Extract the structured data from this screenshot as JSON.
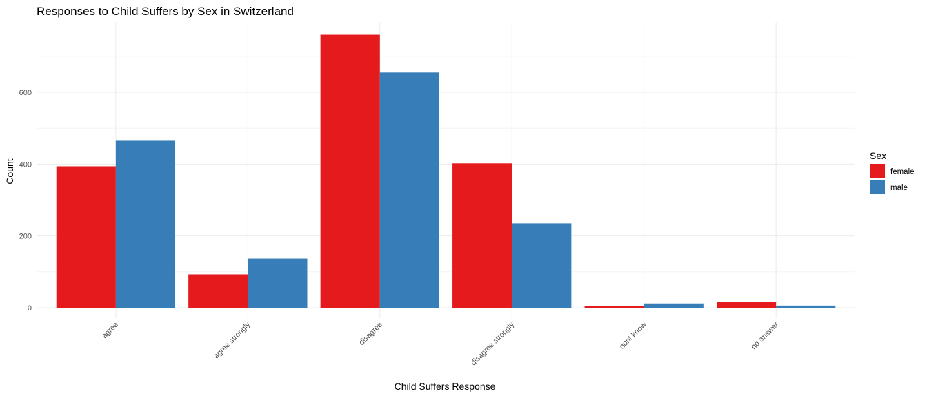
{
  "chart_data": {
    "type": "bar",
    "title": "Responses to Child Suffers by Sex in Switzerland",
    "xlabel": "Child Suffers Response",
    "ylabel": "Count",
    "categories": [
      "agree",
      "agree strongly",
      "disagree",
      "disagree strongly",
      "dont know",
      "no answer"
    ],
    "series": [
      {
        "name": "female",
        "color": "#E41A1C",
        "values": [
          394,
          93,
          760,
          402,
          5,
          16
        ]
      },
      {
        "name": "male",
        "color": "#377EB8",
        "values": [
          465,
          137,
          655,
          235,
          12,
          6
        ]
      }
    ],
    "y_ticks": [
      0,
      200,
      400,
      600
    ],
    "ylim": [
      0,
      760
    ],
    "grid": true,
    "legend": {
      "title": "Sex",
      "position": "right"
    }
  }
}
